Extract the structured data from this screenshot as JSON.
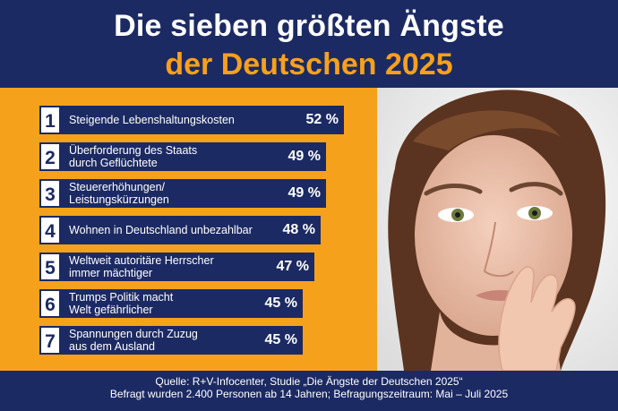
{
  "header": {
    "title_line1": "Die sieben größten Ängste",
    "title_line2": "der Deutschen 2025"
  },
  "chart_data": {
    "type": "bar",
    "categories": [
      "Steigende Lebenshaltungskosten",
      "Überforderung des Staats\ndurch Geflüchtete",
      "Steuererhöhungen/\nLeistungskürzungen",
      "Wohnen in Deutschland unbezahlbar",
      "Weltweit autoritäre Herrscher\nimmer mächtiger",
      "Trumps Politik macht\nWelt gefährlicher",
      "Spannungen durch Zuzug\naus dem Ausland"
    ],
    "ranks": [
      "1",
      "2",
      "3",
      "4",
      "5",
      "6",
      "7"
    ],
    "values": [
      52,
      49,
      49,
      48,
      47,
      45,
      45
    ],
    "value_labels": [
      "52 %",
      "49 %",
      "49 %",
      "48 %",
      "47 %",
      "45 %",
      "45 %"
    ],
    "title": "Die sieben größten Ängste der Deutschen 2025",
    "xlabel": "",
    "ylabel": "",
    "unit": "%"
  },
  "footer": {
    "source": "Quelle: R+V-Infocenter, Studie „Die Ängste der Deutschen 2025“",
    "survey": "Befragt wurden 2.400 Personen ab 14 Jahren; Befragungszeitraum: Mai – Juli 2025"
  },
  "colors": {
    "navy": "#1c2a63",
    "orange": "#f6a11c",
    "white": "#ffffff"
  },
  "photo": {
    "icon": "portrait-woman-photo"
  }
}
